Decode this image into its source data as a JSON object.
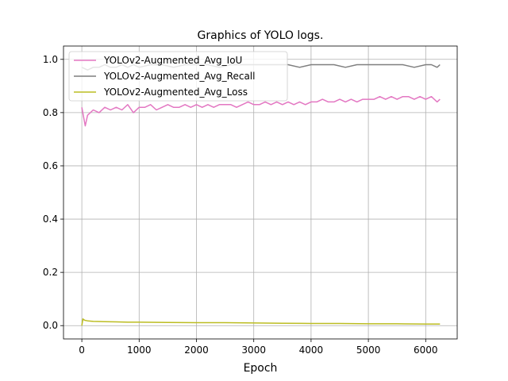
{
  "chart_data": {
    "type": "line",
    "title": "Graphics of YOLO logs.",
    "xlabel": "Epoch",
    "ylabel": "",
    "xlim": [
      -320,
      6550
    ],
    "ylim": [
      -0.05,
      1.05
    ],
    "xticks": [
      0,
      1000,
      2000,
      3000,
      4000,
      5000,
      6000
    ],
    "yticks": [
      0.0,
      0.2,
      0.4,
      0.6,
      0.8,
      1.0
    ],
    "xtick_labels": [
      "0",
      "1000",
      "2000",
      "3000",
      "4000",
      "5000",
      "6000"
    ],
    "ytick_labels": [
      "0.0",
      "0.2",
      "0.4",
      "0.6",
      "0.8",
      "1.0"
    ],
    "grid": true,
    "legend_position": "top-left",
    "series": [
      {
        "name": "YOLOv2-Augmented_Avg_IoU",
        "color": "#e377c2",
        "x": [
          0,
          60,
          100,
          200,
          300,
          400,
          500,
          600,
          700,
          800,
          900,
          1000,
          1100,
          1200,
          1300,
          1400,
          1500,
          1600,
          1700,
          1800,
          1900,
          2000,
          2100,
          2200,
          2300,
          2400,
          2500,
          2600,
          2700,
          2800,
          2900,
          3000,
          3100,
          3200,
          3300,
          3400,
          3500,
          3600,
          3700,
          3800,
          3900,
          4000,
          4100,
          4200,
          4300,
          4400,
          4500,
          4600,
          4700,
          4800,
          4900,
          5000,
          5100,
          5200,
          5300,
          5400,
          5500,
          5600,
          5700,
          5800,
          5900,
          6000,
          6100,
          6200,
          6250
        ],
        "y": [
          0.82,
          0.75,
          0.79,
          0.81,
          0.8,
          0.82,
          0.81,
          0.82,
          0.81,
          0.83,
          0.8,
          0.82,
          0.82,
          0.83,
          0.81,
          0.82,
          0.83,
          0.82,
          0.82,
          0.83,
          0.82,
          0.83,
          0.82,
          0.83,
          0.82,
          0.83,
          0.83,
          0.83,
          0.82,
          0.83,
          0.84,
          0.83,
          0.83,
          0.84,
          0.83,
          0.84,
          0.83,
          0.84,
          0.83,
          0.84,
          0.83,
          0.84,
          0.84,
          0.85,
          0.84,
          0.84,
          0.85,
          0.84,
          0.85,
          0.84,
          0.85,
          0.85,
          0.85,
          0.86,
          0.85,
          0.86,
          0.85,
          0.86,
          0.86,
          0.85,
          0.86,
          0.85,
          0.86,
          0.84,
          0.85
        ]
      },
      {
        "name": "YOLOv2-Augmented_Avg_Recall",
        "color": "#7f7f7f",
        "x": [
          0,
          100,
          200,
          300,
          400,
          500,
          600,
          700,
          800,
          900,
          1000,
          1200,
          1400,
          1600,
          1800,
          2000,
          2200,
          2400,
          2600,
          2800,
          3000,
          3200,
          3400,
          3600,
          3800,
          4000,
          4200,
          4400,
          4600,
          4800,
          5000,
          5200,
          5400,
          5600,
          5800,
          6000,
          6100,
          6200,
          6250
        ],
        "y": [
          0.97,
          0.96,
          0.97,
          0.97,
          0.98,
          0.97,
          0.97,
          0.98,
          0.97,
          0.98,
          0.97,
          0.98,
          0.98,
          0.97,
          0.98,
          0.98,
          0.98,
          0.97,
          0.98,
          0.98,
          0.98,
          0.98,
          0.98,
          0.98,
          0.97,
          0.98,
          0.98,
          0.98,
          0.97,
          0.98,
          0.98,
          0.98,
          0.98,
          0.98,
          0.97,
          0.98,
          0.98,
          0.97,
          0.98
        ]
      },
      {
        "name": "YOLOv2-Augmented_Avg_Loss",
        "color": "#bcbd22",
        "x": [
          0,
          20,
          50,
          100,
          200,
          400,
          600,
          800,
          1000,
          1500,
          2000,
          2500,
          3000,
          3500,
          4000,
          4500,
          5000,
          5500,
          6000,
          6250
        ],
        "y": [
          0.0,
          0.025,
          0.02,
          0.018,
          0.016,
          0.015,
          0.014,
          0.013,
          0.013,
          0.012,
          0.011,
          0.011,
          0.01,
          0.009,
          0.008,
          0.008,
          0.007,
          0.007,
          0.006,
          0.006
        ]
      }
    ]
  }
}
